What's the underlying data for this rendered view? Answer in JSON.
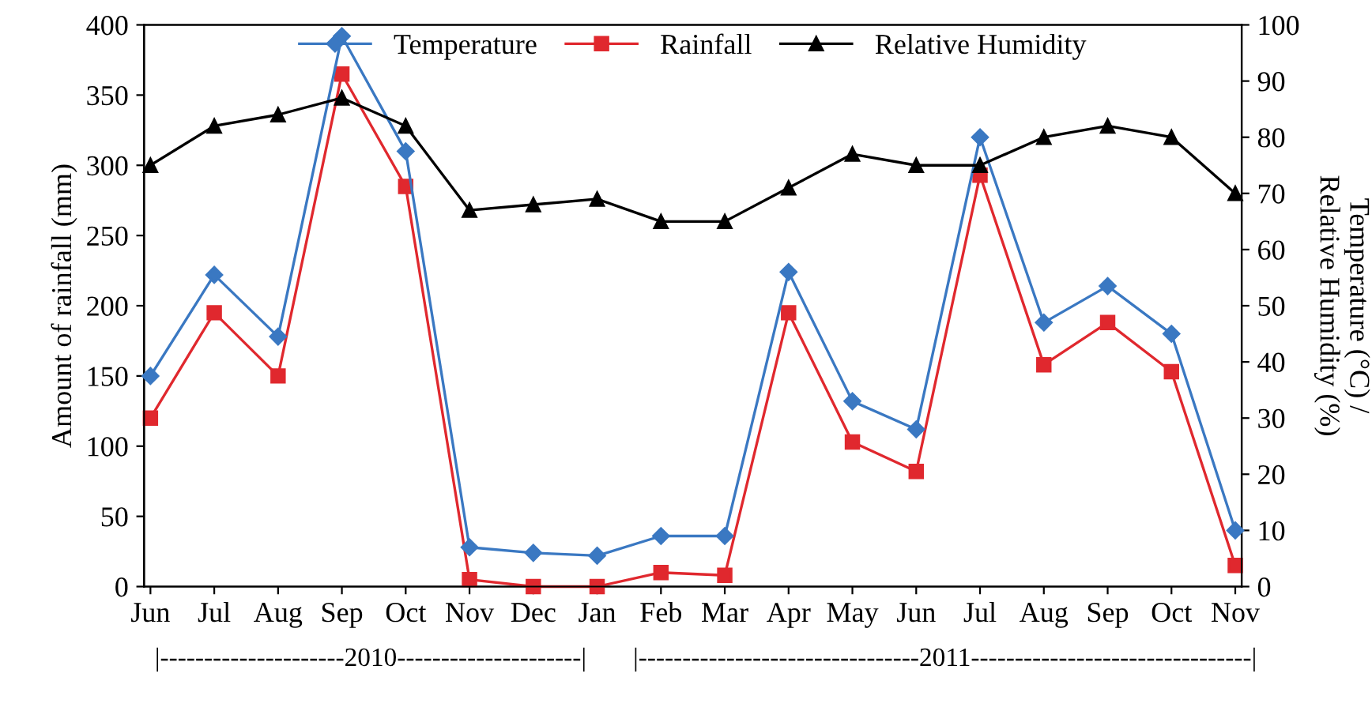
{
  "chart_data": {
    "type": "line",
    "ylabel": "Amount of rainfall (mm)",
    "y2label": "Temperature (°C) /\nRelative Humidity (%)",
    "categories": [
      "Jun",
      "Jul",
      "Aug",
      "Sep",
      "Oct",
      "Nov",
      "Dec",
      "Jan",
      "Feb",
      "Mar",
      "Apr",
      "May",
      "Jun",
      "Jul",
      "Aug",
      "Sep",
      "Oct",
      "Nov"
    ],
    "series": [
      {
        "name": "Temperature",
        "color": "#3a78c2",
        "marker": "diamond",
        "axis": "y2",
        "values": [
          37.5,
          55.5,
          44.5,
          98,
          77.5,
          7,
          6,
          5.5,
          9,
          9,
          56,
          33,
          28,
          80,
          47,
          53.5,
          45,
          10
        ]
      },
      {
        "name": "Rainfall",
        "color": "#e0282e",
        "marker": "square",
        "values": [
          120,
          195,
          150,
          365,
          285,
          5,
          0,
          0,
          10,
          8,
          195,
          103,
          82,
          293,
          158,
          188,
          153,
          15
        ]
      },
      {
        "name": "Relative Humidity",
        "color": "#000000",
        "marker": "triangle",
        "axis": "y2",
        "values": [
          75,
          82,
          84,
          87,
          82,
          67,
          68,
          69,
          65,
          65,
          71,
          77,
          75,
          75,
          80,
          82,
          80,
          70
        ]
      }
    ],
    "ylim": [
      0,
      400
    ],
    "yticks": [
      0,
      50,
      100,
      150,
      200,
      250,
      300,
      350,
      400
    ],
    "y2lim": [
      0,
      100
    ],
    "y2ticks": [
      0,
      10,
      20,
      30,
      40,
      50,
      60,
      70,
      80,
      90,
      100
    ],
    "grid": false,
    "legend": "top",
    "annotations": [
      "|---------------------2010---------------------|",
      "|--------------------------------2011--------------------------------|"
    ]
  }
}
